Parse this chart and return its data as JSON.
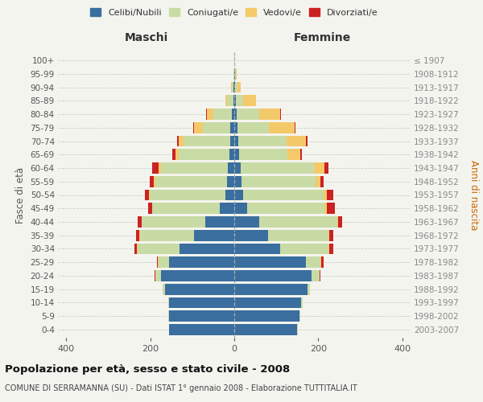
{
  "age_groups": [
    "0-4",
    "5-9",
    "10-14",
    "15-19",
    "20-24",
    "25-29",
    "30-34",
    "35-39",
    "40-44",
    "45-49",
    "50-54",
    "55-59",
    "60-64",
    "65-69",
    "70-74",
    "75-79",
    "80-84",
    "85-89",
    "90-94",
    "95-99",
    "100+"
  ],
  "birth_years": [
    "2003-2007",
    "1998-2002",
    "1993-1997",
    "1988-1992",
    "1983-1987",
    "1978-1982",
    "1973-1977",
    "1968-1972",
    "1963-1967",
    "1958-1962",
    "1953-1957",
    "1948-1952",
    "1943-1947",
    "1938-1942",
    "1933-1937",
    "1928-1932",
    "1923-1927",
    "1918-1922",
    "1913-1917",
    "1908-1912",
    "≤ 1907"
  ],
  "males": {
    "celibi": [
      155,
      155,
      155,
      165,
      175,
      155,
      130,
      95,
      70,
      35,
      22,
      18,
      15,
      12,
      10,
      10,
      5,
      2,
      1,
      0,
      0
    ],
    "coniugati": [
      1,
      2,
      3,
      5,
      12,
      25,
      100,
      130,
      150,
      160,
      180,
      170,
      160,
      120,
      110,
      65,
      45,
      15,
      5,
      1,
      0
    ],
    "vedovi": [
      0,
      0,
      0,
      0,
      1,
      2,
      2,
      1,
      1,
      1,
      2,
      3,
      5,
      8,
      12,
      20,
      15,
      5,
      2,
      0,
      0
    ],
    "divorziati": [
      0,
      0,
      0,
      0,
      1,
      2,
      5,
      8,
      10,
      10,
      8,
      10,
      15,
      8,
      5,
      2,
      2,
      0,
      0,
      0,
      0
    ]
  },
  "females": {
    "celibi": [
      150,
      155,
      160,
      175,
      185,
      170,
      110,
      80,
      60,
      30,
      22,
      18,
      15,
      12,
      10,
      8,
      5,
      3,
      2,
      1,
      0
    ],
    "coniugati": [
      1,
      2,
      3,
      5,
      18,
      35,
      115,
      145,
      185,
      185,
      190,
      175,
      175,
      115,
      115,
      75,
      55,
      18,
      5,
      2,
      1
    ],
    "vedovi": [
      0,
      0,
      0,
      1,
      1,
      2,
      2,
      2,
      2,
      5,
      8,
      12,
      25,
      30,
      45,
      60,
      50,
      30,
      8,
      3,
      1
    ],
    "divorziati": [
      0,
      0,
      0,
      0,
      2,
      5,
      8,
      8,
      10,
      20,
      15,
      8,
      10,
      5,
      5,
      3,
      2,
      1,
      0,
      0,
      0
    ]
  },
  "colors": {
    "celibi": "#3a6e9f",
    "coniugati": "#c8dba5",
    "vedovi": "#f4c96a",
    "divorziati": "#cc2222"
  },
  "xlim": 420,
  "title": "Popolazione per età, sesso e stato civile - 2008",
  "subtitle": "COMUNE DI SERRAMANNA (SU) - Dati ISTAT 1° gennaio 2008 - Elaborazione TUTTITALIA.IT",
  "ylabel_left": "Fasce di età",
  "ylabel_right": "Anni di nascita",
  "xlabel_left": "Maschi",
  "xlabel_right": "Femmine",
  "background_color": "#f4f4ef",
  "legend_labels": [
    "Celibi/Nubili",
    "Coniugati/e",
    "Vedovi/e",
    "Divorziati/e"
  ]
}
